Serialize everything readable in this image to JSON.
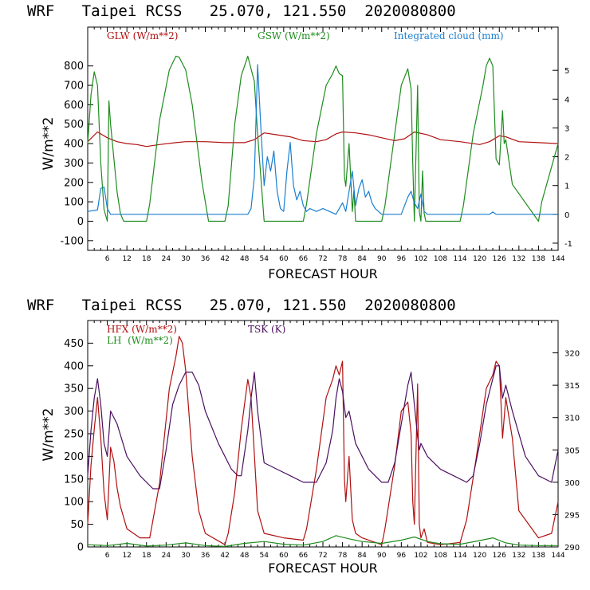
{
  "chart_data": [
    {
      "type": "line",
      "title": "WRF   Taipei RCSS   25.070, 121.550  2020080800",
      "xlabel": "FORECAST HOUR",
      "ylabel": "W/m**2",
      "xlim": [
        0,
        144
      ],
      "ylim": [
        -150,
        1000
      ],
      "y2lim": [
        -1.25,
        6.5
      ],
      "x_ticks": [
        6,
        12,
        18,
        24,
        30,
        36,
        42,
        48,
        54,
        60,
        66,
        72,
        78,
        84,
        90,
        96,
        102,
        108,
        114,
        120,
        126,
        132,
        138,
        144
      ],
      "y_ticks": [
        -100,
        0,
        100,
        200,
        300,
        400,
        500,
        600,
        700,
        800
      ],
      "y2_ticks": [
        -1,
        0,
        1,
        2,
        3,
        4,
        5
      ],
      "grid": false,
      "series": [
        {
          "name": "GLW (W/m**2)",
          "axis": "left",
          "color": "#b01010",
          "x": [
            0,
            3,
            6,
            9,
            12,
            15,
            18,
            22,
            27,
            30,
            36,
            42,
            48,
            51,
            54,
            58,
            62,
            66,
            70,
            73,
            76,
            78,
            82,
            86,
            90,
            94,
            97,
            100,
            104,
            108,
            114,
            120,
            123,
            126,
            128,
            132,
            138,
            144
          ],
          "values": [
            410,
            460,
            430,
            410,
            400,
            395,
            385,
            395,
            405,
            410,
            410,
            405,
            405,
            420,
            455,
            445,
            435,
            415,
            410,
            420,
            450,
            460,
            455,
            445,
            430,
            415,
            425,
            460,
            445,
            420,
            410,
            395,
            410,
            440,
            435,
            410,
            405,
            400
          ]
        },
        {
          "name": "GSW (W/m**2)",
          "axis": "left",
          "color": "#1e8c1e",
          "x": [
            0,
            1,
            2,
            3,
            4,
            5,
            6,
            6.5,
            7,
            9,
            10,
            11,
            18,
            19,
            22,
            25,
            27,
            28,
            30,
            32,
            35,
            37,
            42,
            43,
            45,
            47,
            49,
            51,
            52,
            54,
            66,
            67,
            70,
            73,
            75,
            76,
            77,
            78,
            78.6,
            79,
            80,
            81,
            81.5,
            82,
            90,
            91,
            94,
            96,
            98,
            99,
            99.5,
            100,
            101,
            101.5,
            102,
            102.5,
            103,
            103.5,
            104,
            114,
            115,
            118,
            121,
            122,
            123,
            124,
            125,
            126,
            127,
            127.5,
            128,
            130,
            138,
            139,
            142,
            144
          ],
          "values": [
            400,
            650,
            770,
            700,
            300,
            60,
            0,
            620,
            500,
            150,
            40,
            0,
            0,
            90,
            520,
            780,
            850,
            845,
            780,
            600,
            200,
            0,
            0,
            80,
            500,
            750,
            850,
            720,
            450,
            0,
            0,
            90,
            450,
            700,
            760,
            800,
            760,
            750,
            230,
            180,
            400,
            50,
            160,
            0,
            0,
            80,
            450,
            700,
            785,
            680,
            300,
            0,
            700,
            50,
            0,
            260,
            40,
            0,
            0,
            0,
            80,
            450,
            700,
            800,
            840,
            800,
            320,
            290,
            570,
            400,
            420,
            190,
            0,
            100,
            280,
            400
          ]
        },
        {
          "name": "Integrated cloud (mm)",
          "axis": "right",
          "color": "#1a7fd0",
          "x": [
            0,
            3,
            4,
            5,
            6,
            7,
            48,
            49,
            50,
            51,
            52,
            53,
            54,
            55,
            56,
            57,
            58,
            59,
            60,
            61,
            62,
            63,
            64,
            65,
            66,
            67,
            68,
            70,
            72,
            74,
            76,
            77,
            78,
            79,
            80,
            81,
            82,
            83,
            84,
            85,
            86,
            87,
            88,
            90,
            96,
            97,
            98,
            99,
            100,
            101,
            102,
            103,
            104,
            108,
            123,
            124,
            125,
            144
          ],
          "values": [
            0.1,
            0.15,
            0.9,
            0.95,
            0.2,
            0,
            0,
            0,
            0.2,
            1.3,
            5.2,
            3.0,
            1.0,
            2.0,
            1.5,
            2.2,
            0.8,
            0.2,
            0.1,
            1.5,
            2.5,
            1.0,
            0.5,
            0.8,
            0.3,
            0.1,
            0.2,
            0.1,
            0.2,
            0.1,
            0,
            0.2,
            0.4,
            0.1,
            0.8,
            1.5,
            0.3,
            0.9,
            1.2,
            0.6,
            0.8,
            0.4,
            0.2,
            0,
            0,
            0.3,
            0.6,
            0.8,
            0.4,
            0.2,
            0.7,
            0.1,
            0,
            0,
            0,
            0.08,
            0,
            0
          ]
        }
      ]
    },
    {
      "type": "line",
      "title": "WRF   Taipei RCSS   25.070, 121.550  2020080800",
      "xlabel": "FORECAST HOUR",
      "ylabel": "W/m**2",
      "xlim": [
        0,
        144
      ],
      "ylim": [
        0,
        500
      ],
      "y2lim": [
        290,
        325
      ],
      "x_ticks": [
        6,
        12,
        18,
        24,
        30,
        36,
        42,
        48,
        54,
        60,
        66,
        72,
        78,
        84,
        90,
        96,
        102,
        108,
        114,
        120,
        126,
        132,
        138,
        144
      ],
      "y_ticks": [
        0,
        50,
        100,
        150,
        200,
        250,
        300,
        350,
        400,
        450
      ],
      "y2_ticks": [
        290,
        295,
        300,
        305,
        310,
        315,
        320
      ],
      "grid": false,
      "series": [
        {
          "name": "HFX (W/m**2)",
          "axis": "left",
          "color": "#b01010",
          "x": [
            0,
            1,
            2,
            3,
            4,
            5,
            6,
            7,
            8,
            9,
            10,
            12,
            16,
            19,
            22,
            25,
            27,
            28,
            29,
            30,
            32,
            34,
            36,
            42,
            43,
            45,
            47,
            49,
            50,
            52,
            54,
            60,
            66,
            67,
            70,
            73,
            75,
            76,
            77,
            78,
            78.6,
            79,
            80,
            81,
            82,
            84,
            90,
            91,
            94,
            96,
            98,
            99,
            99.5,
            100,
            101,
            101.5,
            102,
            103,
            104,
            108,
            114,
            116,
            119,
            122,
            124,
            125,
            126,
            127,
            128,
            130,
            132,
            138,
            142,
            144
          ],
          "values": [
            50,
            180,
            260,
            330,
            240,
            120,
            60,
            220,
            190,
            130,
            90,
            40,
            20,
            20,
            140,
            350,
            420,
            465,
            450,
            390,
            200,
            80,
            30,
            5,
            30,
            120,
            260,
            370,
            330,
            80,
            30,
            20,
            15,
            40,
            170,
            330,
            370,
            400,
            380,
            410,
            150,
            100,
            200,
            60,
            30,
            20,
            5,
            40,
            180,
            300,
            320,
            250,
            100,
            50,
            360,
            50,
            20,
            40,
            10,
            5,
            10,
            60,
            200,
            350,
            380,
            410,
            400,
            240,
            330,
            240,
            80,
            20,
            30,
            100
          ]
        },
        {
          "name": "LH (W/m**2)",
          "axis": "left",
          "color": "#1e8c1e",
          "x": [
            0,
            6,
            12,
            18,
            24,
            30,
            36,
            42,
            48,
            54,
            60,
            66,
            72,
            76,
            80,
            84,
            90,
            96,
            100,
            104,
            108,
            114,
            120,
            124,
            128,
            132,
            138,
            144
          ],
          "values": [
            5,
            3,
            8,
            2,
            4,
            9,
            3,
            1,
            8,
            12,
            6,
            4,
            12,
            25,
            18,
            12,
            8,
            15,
            22,
            12,
            7,
            6,
            14,
            20,
            9,
            4,
            3,
            3
          ]
        },
        {
          "name": "TSK (K)",
          "axis": "right",
          "color": "#4a1060",
          "x": [
            0,
            1,
            2,
            3,
            4,
            5,
            6,
            7,
            9,
            12,
            16,
            20,
            22,
            24,
            26,
            28,
            30,
            32,
            34,
            36,
            40,
            44,
            46,
            47,
            49,
            50,
            51,
            52,
            54,
            58,
            62,
            66,
            70,
            73,
            75,
            76,
            77,
            78,
            79,
            80,
            82,
            86,
            90,
            92,
            94,
            96,
            98,
            99,
            100,
            101,
            101.5,
            102,
            103,
            104,
            108,
            112,
            116,
            118,
            120,
            122,
            124,
            125,
            126,
            127,
            128,
            130,
            134,
            138,
            142,
            144
          ],
          "values": [
            301,
            308,
            313,
            316,
            312,
            306,
            304,
            311,
            309,
            304,
            301,
            299,
            299,
            305,
            312,
            315,
            317,
            317,
            315,
            311,
            306,
            302,
            301,
            301,
            308,
            313,
            317,
            311,
            303,
            302,
            301,
            300,
            300,
            303,
            308,
            313,
            316,
            314,
            310,
            311,
            306,
            302,
            300,
            300,
            303,
            309,
            315,
            317,
            312,
            307,
            305,
            306,
            305,
            304,
            302,
            301,
            300,
            301,
            306,
            312,
            316,
            318,
            318,
            313,
            315,
            311,
            304,
            301,
            300,
            305
          ]
        }
      ]
    }
  ],
  "panel1": {
    "title": "WRF   Taipei RCSS   25.070, 121.550  2020080800",
    "legend_glw": "GLW (W/m**2)",
    "legend_gsw": "GSW (W/m**2)",
    "legend_cloud": "Integrated cloud (mm)",
    "xlabel": "FORECAST HOUR",
    "ylabel": "W/m**2"
  },
  "panel2": {
    "title": "WRF   Taipei RCSS   25.070, 121.550  2020080800",
    "legend_hfx": "HFX (W/m**2)",
    "legend_lh": "LH  (W/m**2)",
    "legend_tsk": "TSK (K)",
    "xlabel": "FORECAST HOUR",
    "ylabel": "W/m**2"
  },
  "colors": {
    "red": "#b01010",
    "green": "#1e8c1e",
    "blue": "#1a7fd0",
    "purple": "#4a1060",
    "axis": "#000000"
  }
}
